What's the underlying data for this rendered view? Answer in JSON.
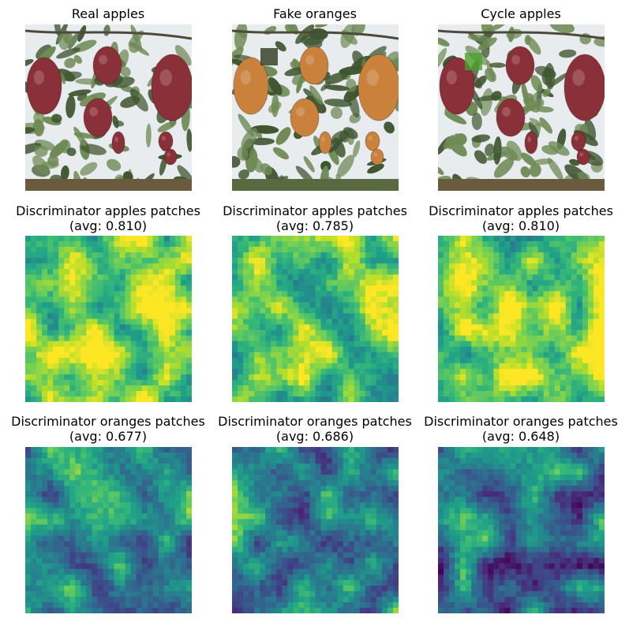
{
  "figure": {
    "rows": [
      {
        "panels": [
          {
            "title_line1": "Real apples",
            "title_line2": "",
            "kind": "photo",
            "variant": "real"
          },
          {
            "title_line1": "Fake oranges",
            "title_line2": "",
            "kind": "photo",
            "variant": "fake"
          },
          {
            "title_line1": "Cycle apples",
            "title_line2": "",
            "kind": "photo",
            "variant": "cycle"
          }
        ]
      },
      {
        "panels": [
          {
            "title_line1": "Discriminator apples patches",
            "title_line2": "(avg: 0.810)",
            "kind": "heatmap",
            "seed": 11,
            "bias": 0.3
          },
          {
            "title_line1": "Discriminator apples patches",
            "title_line2": "(avg: 0.785)",
            "kind": "heatmap",
            "seed": 23,
            "bias": 0.24
          },
          {
            "title_line1": "Discriminator apples patches",
            "title_line2": "(avg: 0.810)",
            "kind": "heatmap",
            "seed": 37,
            "bias": 0.3
          }
        ]
      },
      {
        "panels": [
          {
            "title_line1": "Discriminator oranges patches",
            "title_line2": "(avg: 0.677)",
            "kind": "heatmap",
            "seed": 51,
            "bias": -0.05
          },
          {
            "title_line1": "Discriminator oranges patches",
            "title_line2": "(avg: 0.686)",
            "kind": "heatmap",
            "seed": 67,
            "bias": -0.02
          },
          {
            "title_line1": "Discriminator oranges patches",
            "title_line2": "(avg: 0.648)",
            "kind": "heatmap",
            "seed": 83,
            "bias": -0.12
          }
        ]
      }
    ]
  },
  "chart_data": [
    {
      "type": "image",
      "title": "Real apples"
    },
    {
      "type": "image",
      "title": "Fake oranges"
    },
    {
      "type": "image",
      "title": "Cycle apples"
    },
    {
      "type": "heatmap",
      "title": "Discriminator apples patches\n(avg: 0.810)",
      "avg": 0.81,
      "colormap": "viridis",
      "grid": [
        30,
        30
      ]
    },
    {
      "type": "heatmap",
      "title": "Discriminator apples patches\n(avg: 0.785)",
      "avg": 0.785,
      "colormap": "viridis",
      "grid": [
        30,
        30
      ]
    },
    {
      "type": "heatmap",
      "title": "Discriminator apples patches\n(avg: 0.810)",
      "avg": 0.81,
      "colormap": "viridis",
      "grid": [
        30,
        30
      ]
    },
    {
      "type": "heatmap",
      "title": "Discriminator oranges patches\n(avg: 0.677)",
      "avg": 0.677,
      "colormap": "viridis",
      "grid": [
        30,
        30
      ]
    },
    {
      "type": "heatmap",
      "title": "Discriminator oranges patches\n(avg: 0.686)",
      "avg": 0.686,
      "colormap": "viridis",
      "grid": [
        30,
        30
      ]
    },
    {
      "type": "heatmap",
      "title": "Discriminator oranges patches\n(avg: 0.648)",
      "avg": 0.648,
      "colormap": "viridis",
      "grid": [
        30,
        30
      ]
    }
  ],
  "colors": {
    "viridis": [
      "#440154",
      "#482878",
      "#3e4989",
      "#31688e",
      "#26828e",
      "#1f9e89",
      "#35b779",
      "#6ece58",
      "#b5de2b",
      "#fde725"
    ],
    "leaf": "#6f8a55",
    "leaf_dark": "#3f5530",
    "sky": "#e8ecef",
    "apple_red": "#8a3038",
    "orange": "#c9813c"
  }
}
